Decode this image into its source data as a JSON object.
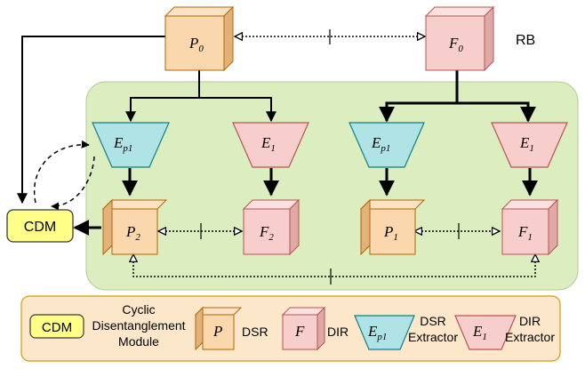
{
  "colors": {
    "dsr_front": "#fad7ac",
    "dsr_top": "#fbe3c3",
    "dsr_side": "#e3b27a",
    "dsr_stroke": "#b46504",
    "dir_front": "#f8cecc",
    "dir_top": "#fbe2e1",
    "dir_side": "#e0a9a7",
    "dir_stroke": "#b85450",
    "extractor_dsr_fill": "#b0e3e6",
    "extractor_dsr_stroke": "#0e8088",
    "extractor_dir_fill": "#f8cecc",
    "extractor_dir_stroke": "#b85450",
    "panel_fill": "#dcedc0",
    "panel_stroke": "#b5c98f",
    "cdm_fill": "#ffff88",
    "cdm_stroke": "#36393d",
    "legend_fill": "#fde7cb",
    "legend_stroke": "#d79b00"
  },
  "diagram": {
    "rb_label": "RB",
    "nodes": {
      "p0": {
        "base": "P",
        "sub": "0"
      },
      "f0": {
        "base": "F",
        "sub": "0"
      },
      "ep1_left": {
        "base": "E",
        "sub": "p1"
      },
      "e1_left": {
        "base": "E",
        "sub": "1"
      },
      "ep1_right": {
        "base": "E",
        "sub": "p1"
      },
      "e1_right": {
        "base": "E",
        "sub": "1"
      },
      "p2": {
        "base": "P",
        "sub": "2"
      },
      "f2": {
        "base": "F",
        "sub": "2"
      },
      "p1": {
        "base": "P",
        "sub": "1"
      },
      "f1": {
        "base": "F",
        "sub": "1"
      }
    },
    "cdm_label": "CDM"
  },
  "legend": {
    "cdm_label": "CDM",
    "cdm_desc": [
      "Cyclic",
      "Disentanglement",
      "Module"
    ],
    "dsr_symbol": "P",
    "dsr_label": "DSR",
    "dir_symbol": "F",
    "dir_label": "DIR",
    "ep1_symbol": {
      "base": "E",
      "sub": "p1"
    },
    "ep1_desc": [
      "DSR",
      "Extractor"
    ],
    "e1_symbol": {
      "base": "E",
      "sub": "1"
    },
    "e1_desc": [
      "DIR",
      "Extractor"
    ]
  }
}
